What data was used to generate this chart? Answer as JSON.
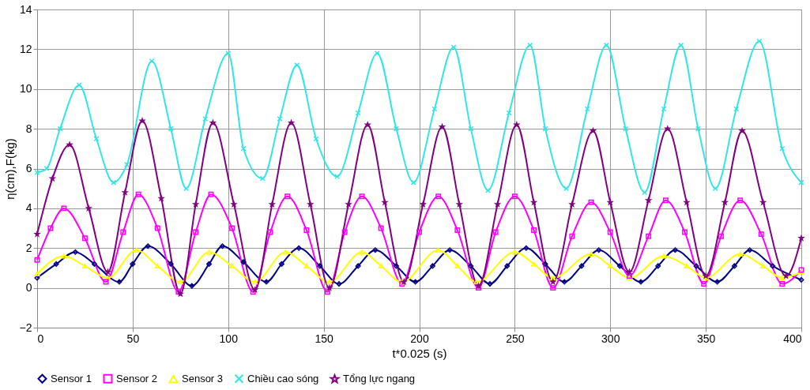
{
  "chart_data": {
    "type": "line",
    "xlabel": "t*0.025 (s)",
    "ylabel": "η(cm),F(kg)",
    "xlim": [
      0,
      400
    ],
    "xticks": [
      0,
      50,
      100,
      150,
      200,
      250,
      300,
      350,
      400
    ],
    "ylim": [
      -2,
      14
    ],
    "yticks": [
      -2,
      0,
      2,
      4,
      6,
      8,
      10,
      12,
      14
    ],
    "grid": true,
    "legend": "bottom",
    "line_style": "solid",
    "series": [
      {
        "name": "Sensor 1",
        "color": "#000080",
        "marker": "diamond",
        "x": [
          0,
          10,
          20,
          30,
          43,
          50,
          58,
          70,
          81,
          90,
          97,
          108,
          120,
          128,
          137,
          148,
          158,
          168,
          177,
          188,
          198,
          207,
          216,
          227,
          237,
          246,
          256,
          266,
          276,
          285,
          294,
          305,
          316,
          325,
          334,
          345,
          356,
          365,
          373,
          385,
          400
        ],
        "values": [
          0.5,
          1.2,
          1.8,
          1.2,
          0.3,
          1.2,
          2.1,
          1.2,
          0.1,
          1.2,
          2.1,
          1.3,
          0.3,
          1.2,
          2.0,
          1.1,
          0.2,
          1.1,
          1.9,
          1.1,
          0.3,
          1.1,
          1.9,
          1.1,
          0.2,
          1.1,
          2.0,
          1.2,
          0.3,
          1.1,
          1.9,
          1.1,
          0.3,
          1.1,
          1.9,
          1.1,
          0.3,
          1.1,
          1.9,
          1.1,
          0.4
        ]
      },
      {
        "name": "Sensor 2",
        "color": "#ff00ff",
        "marker": "square",
        "x": [
          0,
          7,
          14,
          25,
          36,
          45,
          53,
          63,
          74,
          83,
          91,
          102,
          113,
          122,
          131,
          141,
          152,
          161,
          170,
          180,
          191,
          200,
          210,
          220,
          231,
          240,
          250,
          260,
          270,
          280,
          290,
          300,
          310,
          320,
          329,
          339,
          349,
          358,
          368,
          379,
          390,
          400
        ],
        "values": [
          1.4,
          3.0,
          4.0,
          2.5,
          0.3,
          2.8,
          4.7,
          3.0,
          -0.2,
          2.8,
          4.7,
          3.0,
          -0.2,
          2.8,
          4.6,
          2.9,
          -0.2,
          2.8,
          4.6,
          3.0,
          0.2,
          2.8,
          4.6,
          2.9,
          0.0,
          2.8,
          4.6,
          2.9,
          0.0,
          2.6,
          4.3,
          2.8,
          0.6,
          2.6,
          4.4,
          2.8,
          0.2,
          2.6,
          4.4,
          2.7,
          0.2,
          0.9
        ]
      },
      {
        "name": "Sensor 3",
        "color": "#ffff00",
        "marker": "triangle",
        "x": [
          0,
          14,
          25,
          37,
          52,
          63,
          75,
          90,
          102,
          114,
          130,
          141,
          153,
          170,
          180,
          191,
          210,
          220,
          230,
          250,
          260,
          270,
          290,
          300,
          310,
          328,
          340,
          350,
          368,
          380,
          390,
          400
        ],
        "values": [
          0.7,
          1.6,
          1.1,
          0.5,
          1.9,
          1.1,
          0.3,
          1.8,
          1.1,
          0.3,
          1.8,
          1.1,
          0.3,
          1.8,
          1.1,
          0.3,
          1.9,
          1.1,
          0.3,
          1.8,
          1.2,
          0.5,
          1.7,
          1.1,
          0.5,
          1.6,
          1.1,
          0.5,
          1.7,
          1.1,
          0.5,
          0.8
        ]
      },
      {
        "name": "Chiều cao sóng",
        "color": "#33e6e6",
        "marker": "cross",
        "x": [
          0,
          5,
          12,
          22,
          31,
          40,
          47,
          60,
          70,
          78,
          88,
          100,
          108,
          118,
          127,
          136,
          146,
          157,
          168,
          178,
          188,
          197,
          208,
          218,
          227,
          236,
          247,
          258,
          266,
          277,
          288,
          298,
          308,
          318,
          328,
          337,
          346,
          355,
          366,
          378,
          390,
          400
        ],
        "values": [
          5.8,
          6.0,
          8.0,
          10.2,
          7.5,
          5.3,
          6.2,
          11.4,
          8.0,
          5.0,
          8.5,
          11.8,
          7.0,
          5.5,
          8.5,
          11.2,
          7.5,
          5.6,
          8.8,
          11.8,
          8.0,
          5.3,
          9.0,
          12.1,
          8.0,
          4.9,
          8.8,
          12.2,
          8.0,
          5.0,
          9.0,
          12.2,
          8.0,
          4.8,
          9.0,
          12.2,
          8.0,
          5.0,
          9.0,
          12.4,
          7.0,
          5.3
        ]
      },
      {
        "name": "Tổng lực ngang",
        "color": "#800080",
        "marker": "star",
        "x": [
          0,
          8,
          17,
          27,
          37,
          46,
          55,
          65,
          75,
          83,
          92,
          103,
          114,
          123,
          133,
          143,
          153,
          163,
          173,
          182,
          192,
          202,
          212,
          221,
          231,
          241,
          251,
          260,
          270,
          280,
          291,
          300,
          310,
          320,
          330,
          340,
          350,
          360,
          369,
          380,
          392,
          400
        ],
        "values": [
          2.7,
          5.5,
          7.2,
          4.0,
          0.8,
          4.8,
          8.4,
          4.5,
          -0.3,
          4.2,
          8.3,
          4.2,
          -0.1,
          4.2,
          8.3,
          4.2,
          0.0,
          4.2,
          8.2,
          4.3,
          0.3,
          4.2,
          8.1,
          4.2,
          0.1,
          4.2,
          8.2,
          4.3,
          0.3,
          4.2,
          7.9,
          4.3,
          0.8,
          4.4,
          8.0,
          4.3,
          0.6,
          4.3,
          7.9,
          4.3,
          0.6,
          2.5
        ]
      }
    ]
  }
}
